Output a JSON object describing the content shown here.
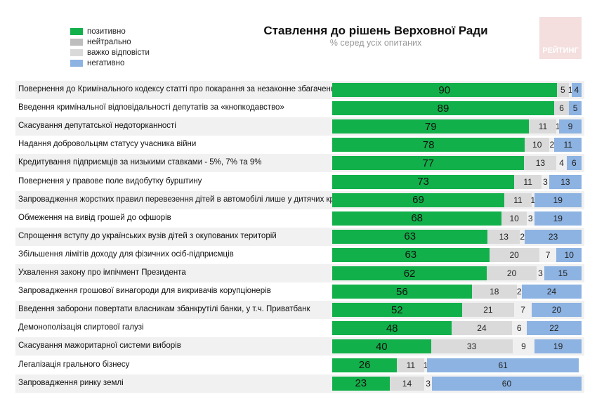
{
  "title": "Ставлення до рішень Верховної Ради",
  "subtitle": "% серед усіх опитаних",
  "logo": "РЕЙТИНГ",
  "colors": {
    "positive": "#12b04a",
    "neutral": "#dadada",
    "hard": "#f0f0f0",
    "negative": "#8db3e2",
    "legend_neutral": "#bdbdbd",
    "legend_hard": "#d9d9d9"
  },
  "chart_data": {
    "type": "bar",
    "stacked": true,
    "orientation": "horizontal",
    "title": "Ставлення до рішень Верховної Ради",
    "subtitle": "% серед усіх опитаних",
    "legend": [
      "позитивно",
      "нейтрально",
      "важко відповісти",
      "негативно"
    ],
    "legend_position": "top-left",
    "categories": [
      "Повернення до Кримінального кодексу статті про покарання за незаконне збагачення",
      "Введення кримінальної відповідальності депутатів за «кнопкодавство»",
      "Скасування депутатської недоторканності",
      "Надання добровольцям статусу учасника війни",
      "Кредитування підприємців за низькими ставками - 5%, 7% та 9%",
      "Повернення у правове поле видобутку бурштину",
      "Запровадження жорстких правил перевезення дітей в автомобілі лише у дитячих кріслах",
      "Обмеження на вивід грошей до офшорів",
      "Спрощення вступу до українських вузів дітей з окупованих територій",
      "Збільшення лімітів доходу для фізичних осіб-підприємців",
      "Ухвалення закону про імпічмент Президента",
      "Запровадження грошової винагороди для викривачів корупціонерів",
      "Введення заборони повертати власникам збанкрутілі банки, у т.ч. Приватбанк",
      "Демонополізація спиртової галузі",
      "Скасування мажоритарної системи виборів",
      "Легалізація грального бізнесу",
      "Запровадження ринку землі"
    ],
    "series": [
      {
        "name": "позитивно",
        "values": [
          90,
          89,
          79,
          78,
          77,
          73,
          69,
          68,
          63,
          63,
          62,
          56,
          52,
          48,
          40,
          26,
          23
        ]
      },
      {
        "name": "нейтрально",
        "values": [
          5,
          6,
          11,
          10,
          13,
          11,
          11,
          10,
          13,
          20,
          20,
          18,
          21,
          24,
          33,
          11,
          14
        ]
      },
      {
        "name": "важко відповісти",
        "values": [
          1,
          0,
          1,
          2,
          4,
          3,
          1,
          3,
          2,
          7,
          3,
          2,
          7,
          6,
          9,
          1,
          3
        ]
      },
      {
        "name": "негативно",
        "values": [
          4,
          5,
          9,
          11,
          6,
          13,
          19,
          19,
          23,
          10,
          15,
          24,
          20,
          22,
          19,
          61,
          60
        ]
      }
    ],
    "xlim": [
      0,
      100
    ]
  }
}
